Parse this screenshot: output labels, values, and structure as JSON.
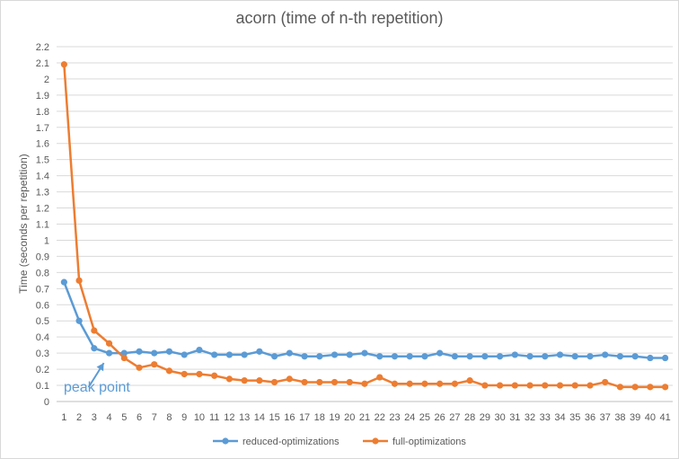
{
  "chart_data": {
    "type": "line",
    "title": "acorn (time of n-th repetition)",
    "xlabel": "",
    "ylabel": "Time (seconds per repetition)",
    "categories": [
      "1",
      "2",
      "3",
      "4",
      "5",
      "6",
      "7",
      "8",
      "9",
      "10",
      "11",
      "12",
      "13",
      "14",
      "15",
      "16",
      "17",
      "18",
      "19",
      "20",
      "21",
      "22",
      "23",
      "24",
      "25",
      "26",
      "27",
      "28",
      "29",
      "30",
      "31",
      "32",
      "33",
      "34",
      "35",
      "36",
      "37",
      "38",
      "39",
      "40",
      "41"
    ],
    "ylim": [
      0,
      2.2
    ],
    "ytick_step": 0.1,
    "yticks": [
      "0",
      "0.1",
      "0.2",
      "0.3",
      "0.4",
      "0.5",
      "0.6",
      "0.7",
      "0.8",
      "0.9",
      "1",
      "1.1",
      "1.2",
      "1.3",
      "1.4",
      "1.5",
      "1.6",
      "1.7",
      "1.8",
      "1.9",
      "2",
      "2.1",
      "2.2"
    ],
    "grid": true,
    "legend_position": "bottom",
    "series": [
      {
        "name": "reduced-optimizations",
        "color": "#5b9bd5",
        "values": [
          0.74,
          0.5,
          0.33,
          0.3,
          0.3,
          0.31,
          0.3,
          0.31,
          0.29,
          0.32,
          0.29,
          0.29,
          0.29,
          0.31,
          0.28,
          0.3,
          0.28,
          0.28,
          0.29,
          0.29,
          0.3,
          0.28,
          0.28,
          0.28,
          0.28,
          0.3,
          0.28,
          0.28,
          0.28,
          0.28,
          0.29,
          0.28,
          0.28,
          0.29,
          0.28,
          0.28,
          0.29,
          0.28,
          0.28,
          0.27,
          0.27
        ]
      },
      {
        "name": "full-optimizations",
        "color": "#ed7d31",
        "values": [
          2.09,
          0.75,
          0.44,
          0.36,
          0.27,
          0.21,
          0.23,
          0.19,
          0.17,
          0.17,
          0.16,
          0.14,
          0.13,
          0.13,
          0.12,
          0.14,
          0.12,
          0.12,
          0.12,
          0.12,
          0.11,
          0.15,
          0.11,
          0.11,
          0.11,
          0.11,
          0.11,
          0.13,
          0.1,
          0.1,
          0.1,
          0.1,
          0.1,
          0.1,
          0.1,
          0.1,
          0.12,
          0.09,
          0.09,
          0.09,
          0.09
        ]
      }
    ],
    "annotations": [
      {
        "text": "peak point",
        "color": "#5b9bd5",
        "arrow_target": {
          "x": "4",
          "y": 0.3
        }
      }
    ]
  }
}
